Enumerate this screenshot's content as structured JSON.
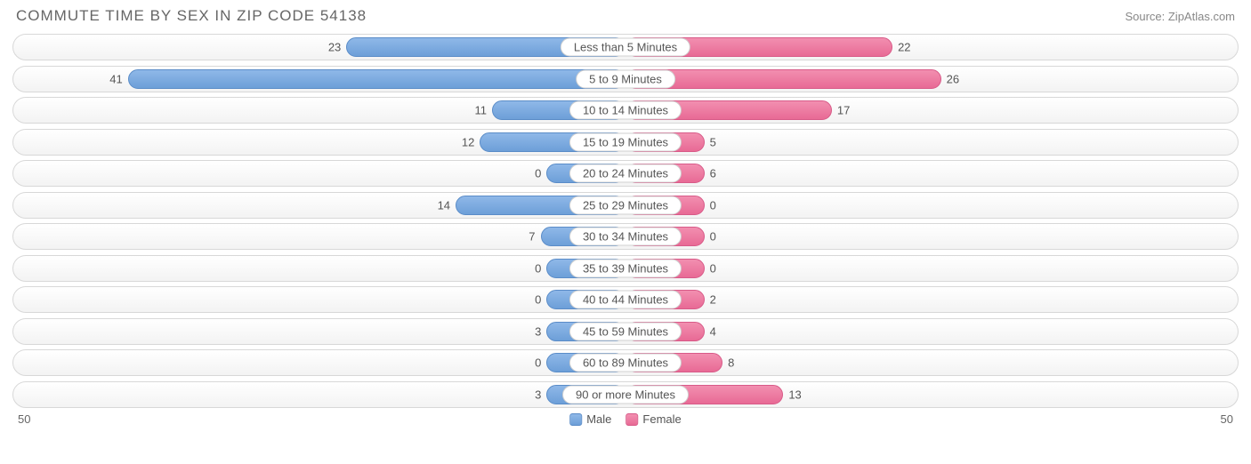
{
  "title": "COMMUTE TIME BY SEX IN ZIP CODE 54138",
  "source": "Source: ZipAtlas.com",
  "axis_max": 50,
  "axis_left_label": "50",
  "axis_right_label": "50",
  "min_bar_width_pct": 6.5,
  "colors": {
    "male_fill_top": "#8fb8e8",
    "male_fill_bottom": "#6d9fd8",
    "male_border": "#5a8cc8",
    "female_fill_top": "#f28fb0",
    "female_fill_bottom": "#e86a95",
    "female_border": "#d85a88",
    "row_border": "#d8d8d8",
    "text": "#555555",
    "title_text": "#666666"
  },
  "legend": {
    "male": "Male",
    "female": "Female"
  },
  "categories": [
    {
      "label": "Less than 5 Minutes",
      "male": 23,
      "female": 22
    },
    {
      "label": "5 to 9 Minutes",
      "male": 41,
      "female": 26
    },
    {
      "label": "10 to 14 Minutes",
      "male": 11,
      "female": 17
    },
    {
      "label": "15 to 19 Minutes",
      "male": 12,
      "female": 5
    },
    {
      "label": "20 to 24 Minutes",
      "male": 0,
      "female": 6
    },
    {
      "label": "25 to 29 Minutes",
      "male": 14,
      "female": 0
    },
    {
      "label": "30 to 34 Minutes",
      "male": 7,
      "female": 0
    },
    {
      "label": "35 to 39 Minutes",
      "male": 0,
      "female": 0
    },
    {
      "label": "40 to 44 Minutes",
      "male": 0,
      "female": 2
    },
    {
      "label": "45 to 59 Minutes",
      "male": 3,
      "female": 4
    },
    {
      "label": "60 to 89 Minutes",
      "male": 0,
      "female": 8
    },
    {
      "label": "90 or more Minutes",
      "male": 3,
      "female": 13
    }
  ]
}
